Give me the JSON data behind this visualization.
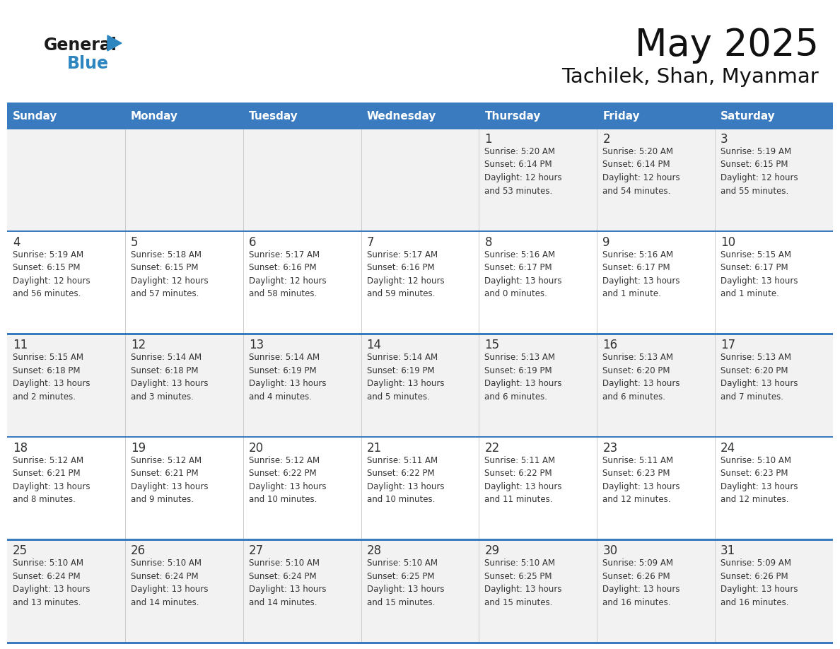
{
  "title": "May 2025",
  "subtitle": "Tachilek, Shan, Myanmar",
  "header_bg": "#3a7abf",
  "header_text_color": "#ffffff",
  "row_bg_even": "#f2f2f2",
  "row_bg_odd": "#ffffff",
  "border_color": "#3a7abf",
  "text_color": "#333333",
  "logo_general_color": "#1a1a1a",
  "logo_blue_color": "#2e86c1",
  "logo_triangle_color": "#2e86c1",
  "days_of_week": [
    "Sunday",
    "Monday",
    "Tuesday",
    "Wednesday",
    "Thursday",
    "Friday",
    "Saturday"
  ],
  "weeks": [
    [
      {
        "day": "",
        "info": ""
      },
      {
        "day": "",
        "info": ""
      },
      {
        "day": "",
        "info": ""
      },
      {
        "day": "",
        "info": ""
      },
      {
        "day": "1",
        "info": "Sunrise: 5:20 AM\nSunset: 6:14 PM\nDaylight: 12 hours\nand 53 minutes."
      },
      {
        "day": "2",
        "info": "Sunrise: 5:20 AM\nSunset: 6:14 PM\nDaylight: 12 hours\nand 54 minutes."
      },
      {
        "day": "3",
        "info": "Sunrise: 5:19 AM\nSunset: 6:15 PM\nDaylight: 12 hours\nand 55 minutes."
      }
    ],
    [
      {
        "day": "4",
        "info": "Sunrise: 5:19 AM\nSunset: 6:15 PM\nDaylight: 12 hours\nand 56 minutes."
      },
      {
        "day": "5",
        "info": "Sunrise: 5:18 AM\nSunset: 6:15 PM\nDaylight: 12 hours\nand 57 minutes."
      },
      {
        "day": "6",
        "info": "Sunrise: 5:17 AM\nSunset: 6:16 PM\nDaylight: 12 hours\nand 58 minutes."
      },
      {
        "day": "7",
        "info": "Sunrise: 5:17 AM\nSunset: 6:16 PM\nDaylight: 12 hours\nand 59 minutes."
      },
      {
        "day": "8",
        "info": "Sunrise: 5:16 AM\nSunset: 6:17 PM\nDaylight: 13 hours\nand 0 minutes."
      },
      {
        "day": "9",
        "info": "Sunrise: 5:16 AM\nSunset: 6:17 PM\nDaylight: 13 hours\nand 1 minute."
      },
      {
        "day": "10",
        "info": "Sunrise: 5:15 AM\nSunset: 6:17 PM\nDaylight: 13 hours\nand 1 minute."
      }
    ],
    [
      {
        "day": "11",
        "info": "Sunrise: 5:15 AM\nSunset: 6:18 PM\nDaylight: 13 hours\nand 2 minutes."
      },
      {
        "day": "12",
        "info": "Sunrise: 5:14 AM\nSunset: 6:18 PM\nDaylight: 13 hours\nand 3 minutes."
      },
      {
        "day": "13",
        "info": "Sunrise: 5:14 AM\nSunset: 6:19 PM\nDaylight: 13 hours\nand 4 minutes."
      },
      {
        "day": "14",
        "info": "Sunrise: 5:14 AM\nSunset: 6:19 PM\nDaylight: 13 hours\nand 5 minutes."
      },
      {
        "day": "15",
        "info": "Sunrise: 5:13 AM\nSunset: 6:19 PM\nDaylight: 13 hours\nand 6 minutes."
      },
      {
        "day": "16",
        "info": "Sunrise: 5:13 AM\nSunset: 6:20 PM\nDaylight: 13 hours\nand 6 minutes."
      },
      {
        "day": "17",
        "info": "Sunrise: 5:13 AM\nSunset: 6:20 PM\nDaylight: 13 hours\nand 7 minutes."
      }
    ],
    [
      {
        "day": "18",
        "info": "Sunrise: 5:12 AM\nSunset: 6:21 PM\nDaylight: 13 hours\nand 8 minutes."
      },
      {
        "day": "19",
        "info": "Sunrise: 5:12 AM\nSunset: 6:21 PM\nDaylight: 13 hours\nand 9 minutes."
      },
      {
        "day": "20",
        "info": "Sunrise: 5:12 AM\nSunset: 6:22 PM\nDaylight: 13 hours\nand 10 minutes."
      },
      {
        "day": "21",
        "info": "Sunrise: 5:11 AM\nSunset: 6:22 PM\nDaylight: 13 hours\nand 10 minutes."
      },
      {
        "day": "22",
        "info": "Sunrise: 5:11 AM\nSunset: 6:22 PM\nDaylight: 13 hours\nand 11 minutes."
      },
      {
        "day": "23",
        "info": "Sunrise: 5:11 AM\nSunset: 6:23 PM\nDaylight: 13 hours\nand 12 minutes."
      },
      {
        "day": "24",
        "info": "Sunrise: 5:10 AM\nSunset: 6:23 PM\nDaylight: 13 hours\nand 12 minutes."
      }
    ],
    [
      {
        "day": "25",
        "info": "Sunrise: 5:10 AM\nSunset: 6:24 PM\nDaylight: 13 hours\nand 13 minutes."
      },
      {
        "day": "26",
        "info": "Sunrise: 5:10 AM\nSunset: 6:24 PM\nDaylight: 13 hours\nand 14 minutes."
      },
      {
        "day": "27",
        "info": "Sunrise: 5:10 AM\nSunset: 6:24 PM\nDaylight: 13 hours\nand 14 minutes."
      },
      {
        "day": "28",
        "info": "Sunrise: 5:10 AM\nSunset: 6:25 PM\nDaylight: 13 hours\nand 15 minutes."
      },
      {
        "day": "29",
        "info": "Sunrise: 5:10 AM\nSunset: 6:25 PM\nDaylight: 13 hours\nand 15 minutes."
      },
      {
        "day": "30",
        "info": "Sunrise: 5:09 AM\nSunset: 6:26 PM\nDaylight: 13 hours\nand 16 minutes."
      },
      {
        "day": "31",
        "info": "Sunrise: 5:09 AM\nSunset: 6:26 PM\nDaylight: 13 hours\nand 16 minutes."
      }
    ]
  ]
}
